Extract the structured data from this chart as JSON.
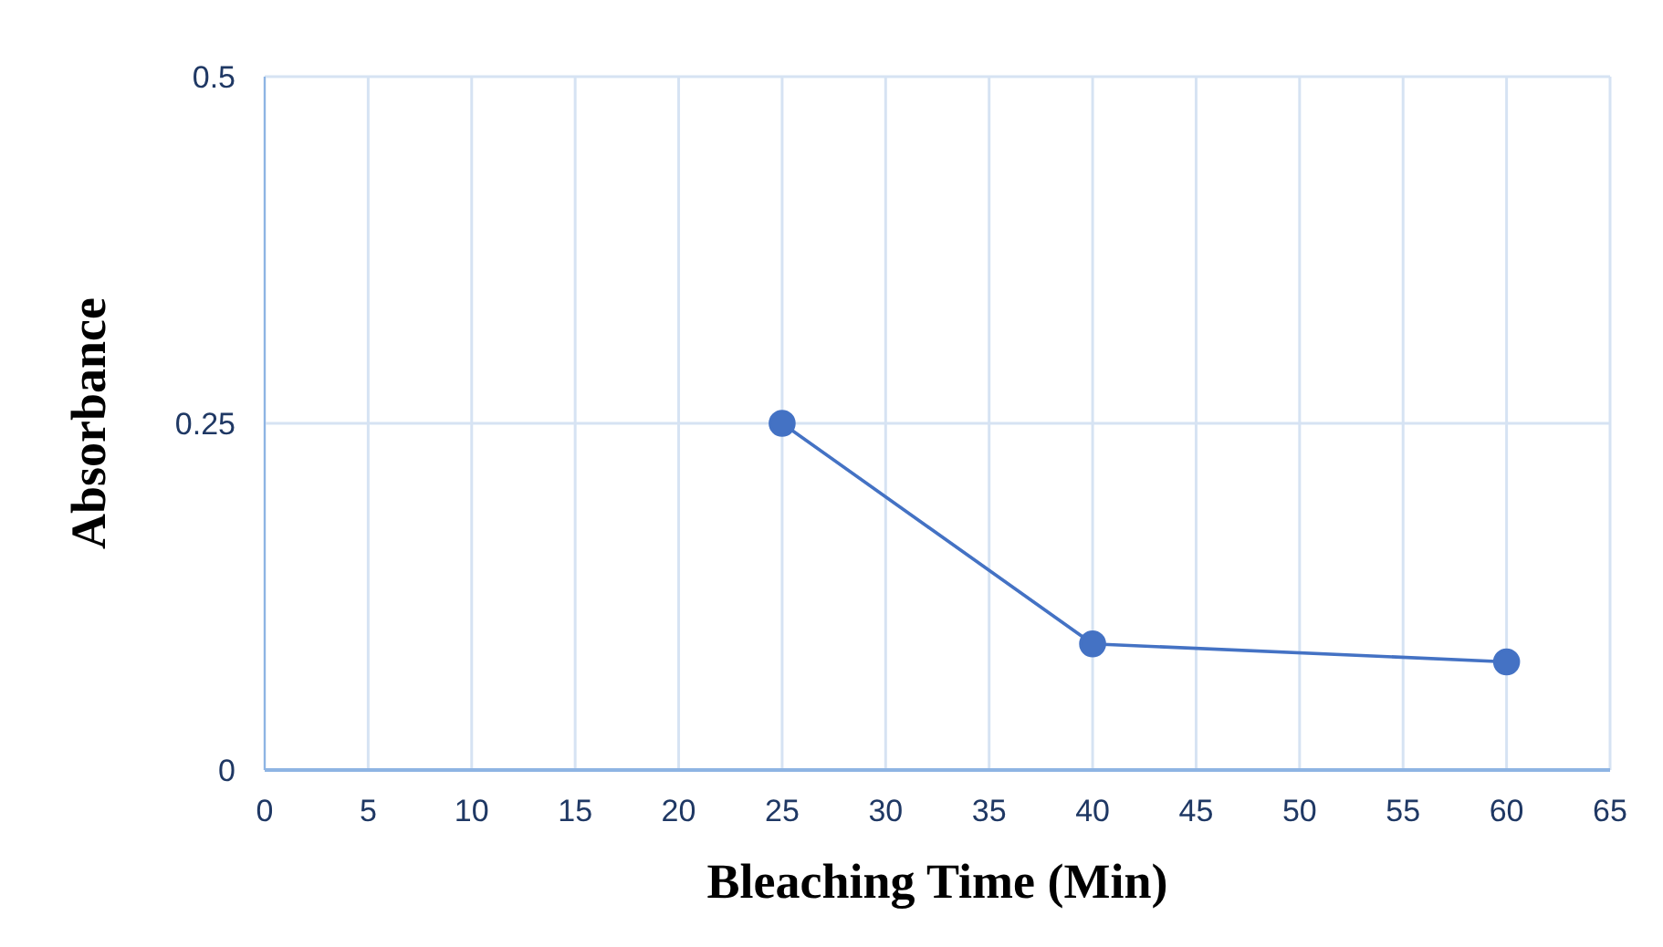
{
  "chart_data": {
    "type": "line",
    "xlabel": "Bleaching Time (Min)",
    "ylabel": "Absorbance",
    "x": [
      25,
      40,
      60
    ],
    "series": [
      {
        "color": "#4472c4",
        "values": [
          0.25,
          0.091,
          0.078
        ]
      }
    ],
    "xlim": [
      0,
      65
    ],
    "xticks": [
      0,
      5,
      10,
      15,
      20,
      25,
      30,
      35,
      40,
      45,
      50,
      55,
      60,
      65
    ],
    "ylim": [
      0,
      0.5
    ],
    "yticks": [
      0,
      0.25,
      0.5
    ],
    "grid": true,
    "legend": false,
    "marker": "circle",
    "line_style": "solid"
  }
}
